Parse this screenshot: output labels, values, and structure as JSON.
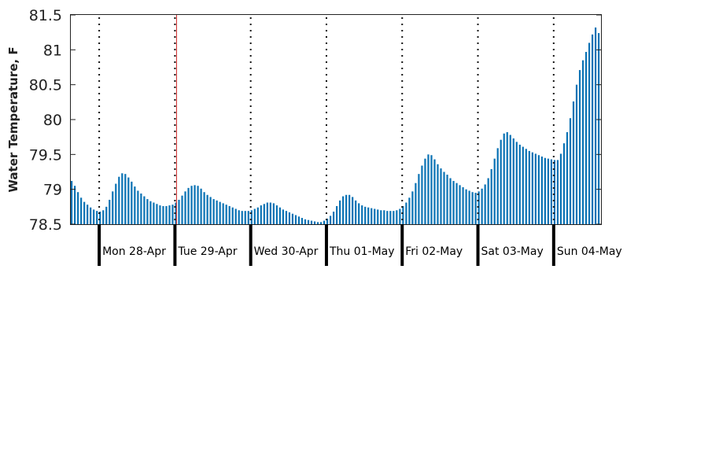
{
  "chart_data": {
    "type": "bar",
    "title": "",
    "xlabel": "",
    "ylabel": "Water Temperature, F",
    "ylim": [
      78.5,
      81.5
    ],
    "yticks": [
      "78.5",
      "79",
      "79.5",
      "80",
      "80.5",
      "81",
      "81.5"
    ],
    "grid": false,
    "legend": "none",
    "bar_color": "#0a72b4",
    "marker_color": "#cc2222",
    "day_labels": [
      "Mon 28-Apr",
      "Tue 29-Apr",
      "Wed 30-Apr",
      "Thu 01-May",
      "Fri 02-May",
      "Sat 03-May",
      "Sun 04-May"
    ],
    "points_per_day": 24,
    "first_day_offset_hours": 9,
    "current_time_index": 33,
    "series": [
      {
        "values": [
          79.12,
          79.05,
          78.96,
          78.88,
          78.82,
          78.78,
          78.74,
          78.71,
          78.69,
          78.68,
          78.7,
          78.75,
          78.85,
          78.97,
          79.08,
          79.18,
          79.23,
          79.22,
          79.17,
          79.11,
          79.04,
          78.98,
          78.94,
          78.9,
          78.86,
          78.83,
          78.81,
          78.79,
          78.77,
          78.76,
          78.76,
          78.77,
          78.78,
          78.81,
          78.85,
          78.91,
          78.97,
          79.02,
          79.05,
          79.06,
          79.05,
          79.01,
          78.96,
          78.92,
          78.89,
          78.86,
          78.84,
          78.82,
          78.8,
          78.78,
          78.76,
          78.74,
          78.72,
          78.7,
          78.69,
          78.69,
          78.69,
          78.7,
          78.72,
          78.74,
          78.77,
          78.79,
          78.81,
          78.81,
          78.8,
          78.77,
          78.74,
          78.71,
          78.69,
          78.67,
          78.65,
          78.63,
          78.61,
          78.59,
          78.57,
          78.56,
          78.55,
          78.54,
          78.53,
          78.53,
          78.55,
          78.58,
          78.62,
          78.68,
          78.76,
          78.84,
          78.9,
          78.92,
          78.92,
          78.89,
          78.84,
          78.8,
          78.77,
          78.75,
          78.74,
          78.73,
          78.72,
          78.71,
          78.7,
          78.7,
          78.69,
          78.69,
          78.69,
          78.7,
          78.72,
          78.76,
          78.81,
          78.88,
          78.97,
          79.09,
          79.22,
          79.34,
          79.44,
          79.5,
          79.49,
          79.43,
          79.36,
          79.3,
          79.25,
          79.21,
          79.16,
          79.12,
          79.09,
          79.06,
          79.03,
          79.0,
          78.98,
          78.96,
          78.95,
          78.97,
          79.01,
          79.07,
          79.16,
          79.29,
          79.44,
          79.59,
          79.71,
          79.8,
          79.82,
          79.78,
          79.73,
          79.68,
          79.64,
          79.61,
          79.58,
          79.55,
          79.53,
          79.51,
          79.49,
          79.47,
          79.45,
          79.44,
          79.43,
          79.42,
          79.42,
          79.51,
          79.66,
          79.82,
          80.02,
          80.26,
          80.5,
          80.71,
          80.85,
          80.97,
          81.1,
          81.22,
          81.32,
          81.24
        ]
      }
    ]
  }
}
